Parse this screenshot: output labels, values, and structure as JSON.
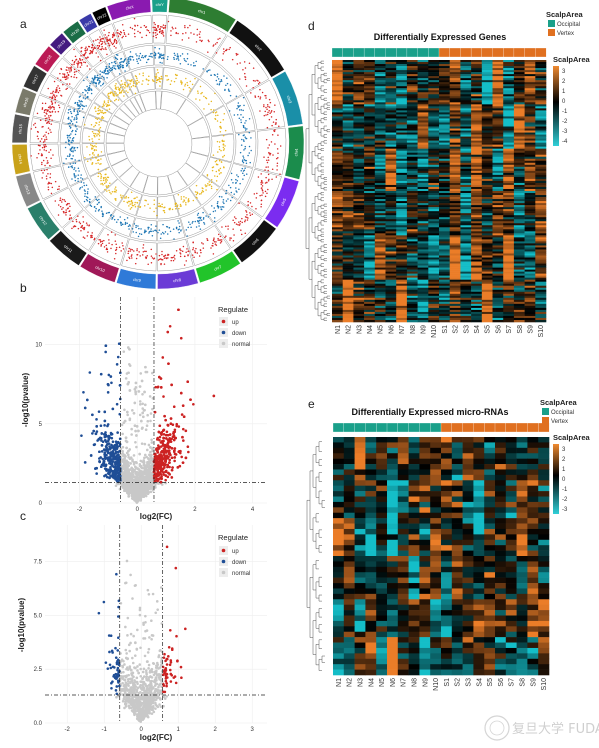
{
  "panels": {
    "a": "a",
    "b": "b",
    "c": "c",
    "d": "d",
    "e": "e"
  },
  "circos": {
    "chromosomes": [
      "chr1",
      "chr2",
      "chr3",
      "chr4",
      "chr5",
      "chr6",
      "chr7",
      "chr8",
      "chr9",
      "chr10",
      "chr11",
      "chr12",
      "chr13",
      "chr14",
      "chr15",
      "chr16",
      "chr17",
      "chr18",
      "chr19",
      "chr20",
      "chr21",
      "chr22",
      "chrX",
      "chrY"
    ],
    "chrom_colors": [
      "#2e7d32",
      "#111111",
      "#1a8fa8",
      "#1b8c4c",
      "#7b2cf0",
      "#111111",
      "#22c42a",
      "#6b3bd6",
      "#2f7ad8",
      "#a01858",
      "#1a1a1a",
      "#2a7f6a",
      "#888888",
      "#c9a21a",
      "#555555",
      "#7a7a6a",
      "#333333",
      "#bb1a55",
      "#441a80",
      "#1a6c46",
      "#3a3aa8",
      "#000000",
      "#8a1ab0",
      "#1aa08a"
    ],
    "track_colors": {
      "outer": "#d62728",
      "middle": "#1f77b4",
      "inner": "#e8b820"
    }
  },
  "volcano_b": {
    "chart_data": {
      "type": "scatter",
      "xlabel": "log2(FC)",
      "ylabel": "-log10(pvalue)",
      "xticks": [
        "-2",
        "0",
        "2",
        "4"
      ],
      "yticks": [
        "0",
        "5",
        "10"
      ],
      "xlim": [
        -3.2,
        4.5
      ],
      "ylim": [
        0,
        13
      ],
      "fc_threshold": 0.58,
      "p_threshold": 1.3,
      "legend_title": "Regulate",
      "legend": [
        {
          "label": "up",
          "color": "#cc2222"
        },
        {
          "label": "down",
          "color": "#1f4e96"
        },
        {
          "label": "normal",
          "color": "#c8c8c8"
        }
      ]
    }
  },
  "volcano_c": {
    "chart_data": {
      "type": "scatter",
      "xlabel": "log2(FC)",
      "ylabel": "-log10(pvalue)",
      "xticks": [
        "-2",
        "-1",
        "0",
        "1",
        "2",
        "3"
      ],
      "yticks": [
        "0.0",
        "2.5",
        "5.0",
        "7.5"
      ],
      "xlim": [
        -2.6,
        3.4
      ],
      "ylim": [
        0,
        9.2
      ],
      "fc_threshold": 0.58,
      "p_threshold": 1.3,
      "legend_title": "Regulate",
      "legend": [
        {
          "label": "up",
          "color": "#cc2222"
        },
        {
          "label": "down",
          "color": "#1f4e96"
        },
        {
          "label": "normal",
          "color": "#c8c8c8"
        }
      ]
    }
  },
  "heatmap_d": {
    "title": "Differentially Expressed Genes",
    "scalp_area_title": "ScalpArea",
    "scalp_area_items": [
      {
        "label": "Occipital",
        "color": "#1aa08a"
      },
      {
        "label": "Vertex",
        "color": "#e07020"
      }
    ],
    "color_scale_title": "ScalpArea",
    "color_ticks": [
      "3",
      "2",
      "1",
      "0",
      "-1",
      "-2",
      "-3",
      "-4"
    ],
    "samples": [
      "N1",
      "N2",
      "N3",
      "N4",
      "N5",
      "N6",
      "N7",
      "N8",
      "N9",
      "N10",
      "S1",
      "S2",
      "S3",
      "S4",
      "S5",
      "S6",
      "S7",
      "S8",
      "S9",
      "S10"
    ]
  },
  "heatmap_e": {
    "title": "Differentially Expressed micro-RNAs",
    "scalp_area_title": "ScalpArea",
    "scalp_area_items": [
      {
        "label": "Occipital",
        "color": "#1aa08a"
      },
      {
        "label": "Vertex",
        "color": "#e07020"
      }
    ],
    "color_scale_title": "ScalpArea",
    "color_ticks": [
      "3",
      "2",
      "1",
      "0",
      "-1",
      "-2",
      "-3"
    ],
    "samples": [
      "N1",
      "N2",
      "N3",
      "N4",
      "N5",
      "N6",
      "N7",
      "N8",
      "N9",
      "N10",
      "S1",
      "S2",
      "S3",
      "S4",
      "S5",
      "S6",
      "S7",
      "S8",
      "S9",
      "S10"
    ]
  },
  "watermark": "复旦大学 FUDAN UNIVERSITY"
}
